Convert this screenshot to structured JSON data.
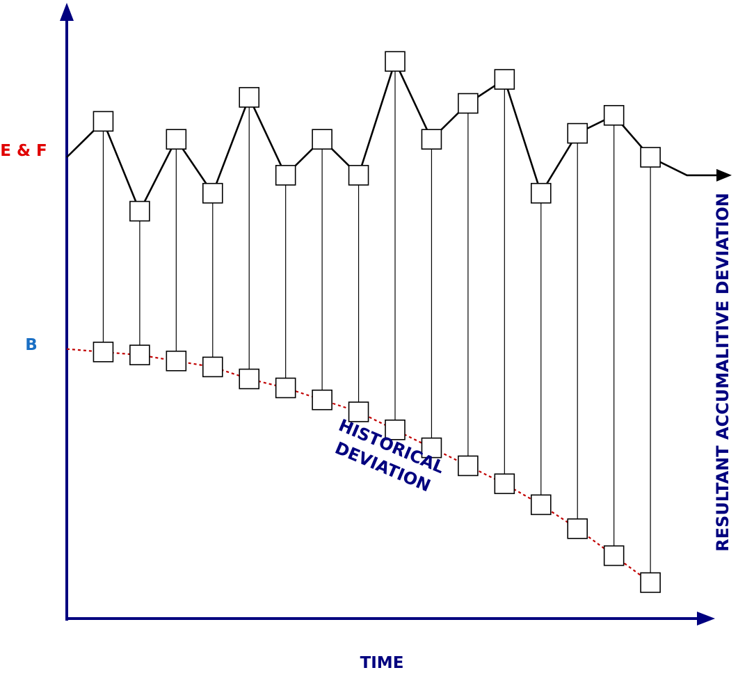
{
  "labels": {
    "ef": "E & F",
    "b": "B",
    "historical_line1": "HISTORICAL",
    "historical_line2": "DEVIATION",
    "resultant": "RESULTANT ACCUMALITIVE DEVIATION",
    "time": "TIME"
  },
  "colors": {
    "axis": "#00007f",
    "ef_label": "#e00000",
    "b_label": "#1a6fc4",
    "historical_curve": "#c00000",
    "series_line": "#000000"
  },
  "chart_data": {
    "type": "line",
    "xlabel": "TIME",
    "ylabel": "",
    "xlim": [
      0,
      18
    ],
    "ylim": [
      0,
      100
    ],
    "level_labels": [
      {
        "name": "E & F",
        "y": 77
      },
      {
        "name": "B",
        "y": 45
      }
    ],
    "top_series": {
      "x": [
        0,
        1,
        2,
        3,
        4,
        5,
        6,
        7,
        8,
        9,
        10,
        11,
        12,
        13,
        14,
        15,
        16,
        17,
        18
      ],
      "y": [
        77,
        83,
        68,
        80,
        71,
        87,
        74,
        80,
        74,
        93,
        80,
        86,
        90,
        71,
        81,
        84,
        77,
        74,
        74
      ],
      "markers": [
        {
          "x": 1,
          "y": 83
        },
        {
          "x": 2,
          "y": 68
        },
        {
          "x": 3,
          "y": 80
        },
        {
          "x": 4,
          "y": 71
        },
        {
          "x": 5,
          "y": 87
        },
        {
          "x": 6,
          "y": 74
        },
        {
          "x": 7,
          "y": 80
        },
        {
          "x": 8,
          "y": 74
        },
        {
          "x": 9,
          "y": 93
        },
        {
          "x": 10,
          "y": 80
        },
        {
          "x": 11,
          "y": 86
        },
        {
          "x": 12,
          "y": 90
        },
        {
          "x": 13,
          "y": 71
        },
        {
          "x": 14,
          "y": 81
        },
        {
          "x": 15,
          "y": 84
        },
        {
          "x": 16,
          "y": 77
        }
      ]
    },
    "historical_deviation": {
      "x": [
        0,
        1,
        2,
        3,
        4,
        5,
        6,
        7,
        8,
        9,
        10,
        11,
        12,
        13,
        14,
        15,
        16
      ],
      "y": [
        45,
        44.5,
        44,
        43,
        42,
        40,
        38.5,
        36.5,
        34.5,
        31.5,
        28.5,
        25.5,
        22.5,
        19,
        15,
        10.5,
        6
      ]
    }
  }
}
